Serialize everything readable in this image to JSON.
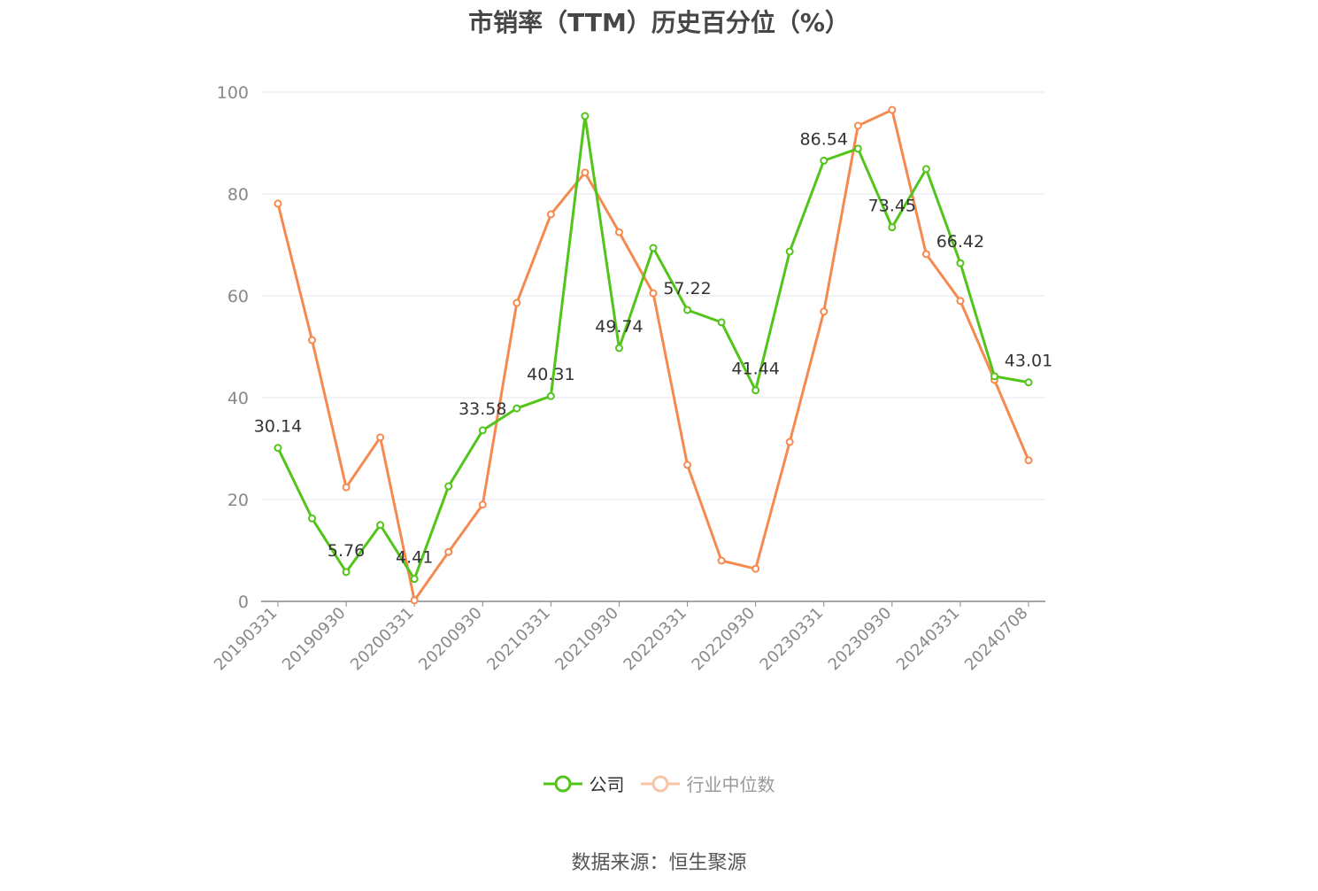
{
  "chart_data": {
    "type": "line",
    "title": "市销率（TTM）历史百分位（%）",
    "xlabel": "",
    "ylabel": "",
    "ylim": [
      0,
      100
    ],
    "yticks": [
      0,
      20,
      40,
      60,
      80,
      100
    ],
    "grid": true,
    "legend_position": "bottom",
    "x": [
      "20190331",
      "20190630",
      "20190930",
      "20191231",
      "20200331",
      "20200630",
      "20200930",
      "20201231",
      "20210331",
      "20210630",
      "20210930",
      "20211231",
      "20220331",
      "20220630",
      "20220930",
      "20221231",
      "20230331",
      "20230630",
      "20230930",
      "20231231",
      "20240331",
      "20240630",
      "20240708"
    ],
    "xtick_labels": [
      "20190331",
      "20190930",
      "20200331",
      "20200930",
      "20210331",
      "20210930",
      "20220331",
      "20220930",
      "20230331",
      "20230930",
      "20240331",
      "20240708"
    ],
    "series": [
      {
        "name": "公司",
        "color": "#52c41a",
        "values": [
          30.14,
          16.3,
          5.76,
          15.0,
          4.41,
          22.6,
          33.58,
          37.9,
          40.31,
          95.3,
          49.74,
          69.4,
          57.22,
          54.8,
          41.44,
          68.7,
          86.54,
          88.9,
          73.45,
          84.9,
          66.42,
          44.2,
          43.01
        ],
        "labels": [
          "30.14",
          null,
          "5.76",
          null,
          "4.41",
          null,
          "33.58",
          null,
          "40.31",
          null,
          "49.74",
          null,
          "57.22",
          null,
          "41.44",
          null,
          "86.54",
          null,
          "73.45",
          null,
          "66.42",
          null,
          "43.01"
        ]
      },
      {
        "name": "行业中位数",
        "color": "#f58a50",
        "values": [
          78.1,
          51.3,
          22.4,
          32.2,
          0.2,
          9.7,
          19.0,
          58.6,
          76.0,
          84.2,
          72.5,
          60.5,
          26.8,
          8.0,
          6.4,
          31.3,
          56.9,
          93.4,
          96.5,
          68.2,
          59.0,
          43.5,
          27.7
        ]
      }
    ]
  },
  "source": "数据来源：恒生聚源"
}
